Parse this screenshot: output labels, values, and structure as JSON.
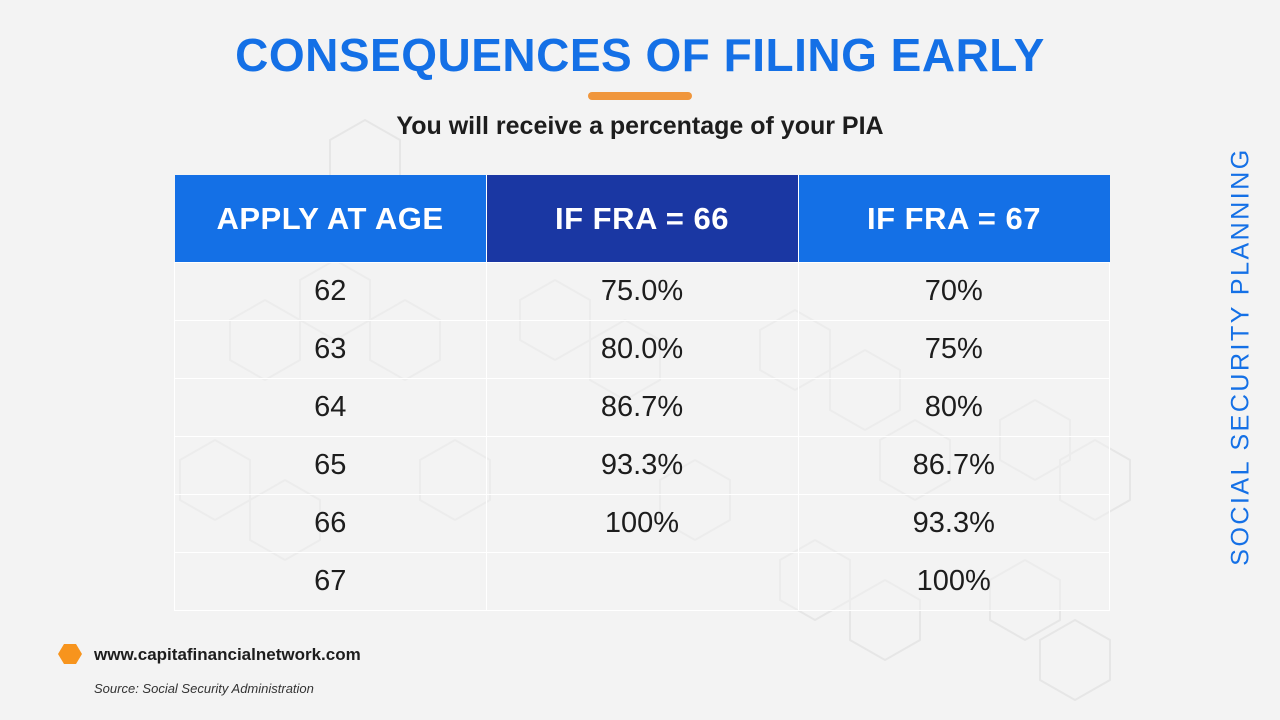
{
  "title": "CONSEQUENCES OF FILING EARLY",
  "subtitle": "You will receive a percentage of your PIA",
  "side_label": "SOCIAL SECURITY PLANNING",
  "table": {
    "headers": [
      "APPLY AT AGE",
      "IF FRA = 66",
      "IF FRA = 67"
    ],
    "rows": [
      [
        "62",
        "75.0%",
        "70%"
      ],
      [
        "63",
        "80.0%",
        "75%"
      ],
      [
        "64",
        "86.7%",
        "80%"
      ],
      [
        "65",
        "93.3%",
        "86.7%"
      ],
      [
        "66",
        "100%",
        "93.3%"
      ],
      [
        "67",
        "",
        "100%"
      ]
    ]
  },
  "footer": {
    "url": "www.capitafinancialnetwork.com",
    "source": "Source: Social Security Administration"
  },
  "colors": {
    "primary_blue": "#1470e6",
    "dark_blue": "#1a37a3",
    "accent_orange": "#f0963c",
    "background": "#f3f3f3"
  },
  "icons": [
    "hexagon-icon"
  ]
}
